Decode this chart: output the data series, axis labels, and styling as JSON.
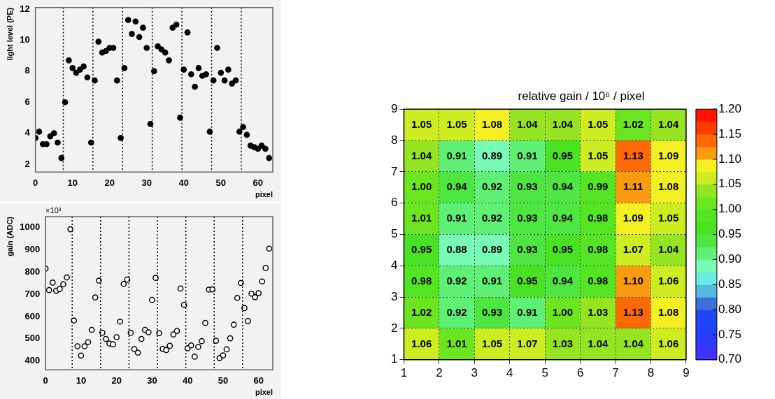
{
  "chart_data": [
    {
      "type": "scatter",
      "xlabel": "pixel",
      "ylabel": "light level (PE)",
      "x": [
        0,
        1,
        2,
        3,
        4,
        5,
        6,
        7,
        8,
        9,
        10,
        11,
        12,
        13,
        14,
        15,
        16,
        17,
        18,
        19,
        20,
        21,
        22,
        23,
        24,
        25,
        26,
        27,
        28,
        29,
        30,
        31,
        32,
        33,
        34,
        35,
        36,
        37,
        38,
        39,
        40,
        41,
        42,
        43,
        44,
        45,
        46,
        47,
        48,
        49,
        50,
        51,
        52,
        53,
        54,
        55,
        56,
        57,
        58,
        59,
        60,
        61,
        62,
        63
      ],
      "values": [
        3.7,
        4.1,
        3.3,
        3.3,
        3.8,
        4.0,
        3.4,
        2.4,
        6.0,
        8.7,
        8.2,
        7.9,
        8.1,
        8.3,
        7.6,
        3.4,
        7.4,
        9.9,
        9.2,
        9.3,
        9.5,
        9.5,
        7.4,
        3.7,
        8.2,
        11.3,
        10.4,
        11.2,
        10.2,
        10.8,
        9.5,
        4.6,
        8.0,
        9.6,
        9.4,
        9.2,
        8.7,
        10.8,
        11.0,
        5.0,
        8.1,
        10.5,
        7.8,
        7.0,
        8.2,
        7.7,
        7.8,
        4.1,
        7.4,
        9.5,
        7.9,
        7.4,
        8.1,
        7.2,
        7.4,
        4.1,
        4.4,
        3.9,
        3.2,
        3.1,
        3.0,
        3.2,
        3.0,
        2.4
      ],
      "color": "#000000",
      "marker": "circle",
      "xlim": [
        0,
        64
      ],
      "xticks": [
        0,
        10,
        20,
        30,
        40,
        50,
        60
      ],
      "ylim": [
        1.5,
        12.1
      ],
      "yticks": [
        2,
        4,
        6,
        8,
        10,
        12
      ],
      "ref_lines": [
        {
          "axis": "x",
          "value": 7.5,
          "color": "#000000",
          "line_style": "dotted"
        },
        {
          "axis": "x",
          "value": 15.5,
          "color": "#000000",
          "line_style": "dotted"
        },
        {
          "axis": "x",
          "value": 23.5,
          "color": "#000000",
          "line_style": "dotted"
        },
        {
          "axis": "x",
          "value": 31.5,
          "color": "#000000",
          "line_style": "dotted"
        },
        {
          "axis": "x",
          "value": 39.5,
          "color": "#000000",
          "line_style": "dotted"
        },
        {
          "axis": "x",
          "value": 47.5,
          "color": "#000000",
          "line_style": "dotted"
        },
        {
          "axis": "x",
          "value": 55.5,
          "color": "#000000",
          "line_style": "dotted"
        }
      ]
    },
    {
      "type": "scatter",
      "xlabel": "pixel",
      "ylabel": "gain (ADC)",
      "annotations": [
        "×10³"
      ],
      "x": [
        0,
        1,
        2,
        3,
        4,
        5,
        6,
        7,
        8,
        9,
        10,
        11,
        12,
        13,
        14,
        15,
        16,
        17,
        18,
        19,
        20,
        21,
        22,
        23,
        24,
        25,
        26,
        27,
        28,
        29,
        30,
        31,
        32,
        33,
        34,
        35,
        36,
        37,
        38,
        39,
        40,
        41,
        42,
        43,
        44,
        45,
        46,
        47,
        48,
        49,
        50,
        51,
        52,
        53,
        54,
        55,
        56,
        57,
        58,
        59,
        60,
        61,
        62,
        63
      ],
      "values": [
        816,
        719,
        753,
        716,
        724,
        745,
        776,
        993,
        582,
        466,
        424,
        466,
        485,
        540,
        686,
        762,
        527,
        499,
        478,
        475,
        507,
        577,
        747,
        766,
        527,
        453,
        437,
        499,
        540,
        529,
        675,
        774,
        525,
        454,
        449,
        468,
        519,
        535,
        726,
        652,
        457,
        470,
        419,
        463,
        489,
        571,
        721,
        722,
        491,
        413,
        425,
        452,
        502,
        563,
        684,
        751,
        638,
        580,
        703,
        687,
        705,
        758,
        819,
        906
      ],
      "color": "#000000",
      "marker": "circle",
      "xlim": [
        0,
        64
      ],
      "xticks": [
        0,
        10,
        20,
        30,
        40,
        50,
        60
      ],
      "ylim": [
        360,
        1050
      ],
      "yticks": [
        400,
        500,
        600,
        700,
        800,
        900,
        1000
      ],
      "ref_lines": [
        {
          "axis": "x",
          "value": 7.5,
          "color": "#000000",
          "line_style": "dotted"
        },
        {
          "axis": "x",
          "value": 15.5,
          "color": "#000000",
          "line_style": "dotted"
        },
        {
          "axis": "x",
          "value": 23.5,
          "color": "#000000",
          "line_style": "dotted"
        },
        {
          "axis": "x",
          "value": 31.5,
          "color": "#000000",
          "line_style": "dotted"
        },
        {
          "axis": "x",
          "value": 39.5,
          "color": "#000000",
          "line_style": "dotted"
        },
        {
          "axis": "x",
          "value": 47.5,
          "color": "#000000",
          "line_style": "dotted"
        },
        {
          "axis": "x",
          "value": 55.5,
          "color": "#000000",
          "line_style": "dotted"
        }
      ]
    },
    {
      "type": "heatmap",
      "title": "relative gain / 10⁶ / pixel",
      "xlim": [
        1,
        9
      ],
      "xticks": [
        1,
        2,
        3,
        4,
        5,
        6,
        7,
        8,
        9
      ],
      "ylim": [
        1,
        9
      ],
      "yticks": [
        1,
        2,
        3,
        4,
        5,
        6,
        7,
        8,
        9
      ],
      "grid": true,
      "cells": [
        [
          1.05,
          1.05,
          1.08,
          1.04,
          1.04,
          1.05,
          1.02,
          1.04
        ],
        [
          1.04,
          0.91,
          0.89,
          0.91,
          0.95,
          1.05,
          1.13,
          1.09
        ],
        [
          1.0,
          0.94,
          0.92,
          0.93,
          0.94,
          0.99,
          1.11,
          1.08
        ],
        [
          1.01,
          0.91,
          0.92,
          0.93,
          0.94,
          0.98,
          1.09,
          1.05
        ],
        [
          0.95,
          0.88,
          0.89,
          0.93,
          0.95,
          0.98,
          1.07,
          1.04
        ],
        [
          0.98,
          0.92,
          0.91,
          0.95,
          0.94,
          0.98,
          1.1,
          1.06
        ],
        [
          1.02,
          0.92,
          0.93,
          0.91,
          1.0,
          1.03,
          1.13,
          1.08
        ],
        [
          1.06,
          1.01,
          1.05,
          1.07,
          1.03,
          1.04,
          1.04,
          1.06
        ]
      ],
      "cell_labels": [
        [
          "1.05",
          "1.05",
          "1.08",
          "1.04",
          "1.04",
          "1.05",
          "1.02",
          "1.04"
        ],
        [
          "1.04",
          "0.91",
          "0.89",
          "0.91",
          "0.95",
          "1.05",
          "1.13",
          "1.09"
        ],
        [
          "1.00",
          "0.94",
          "0.92",
          "0.93",
          "0.94",
          "0.99",
          "1.11",
          "1.08"
        ],
        [
          "1.01",
          "0.91",
          "0.92",
          "0.93",
          "0.94",
          "0.98",
          "1.09",
          "1.05"
        ],
        [
          "0.95",
          "0.88",
          "0.89",
          "0.93",
          "0.95",
          "0.98",
          "1.07",
          "1.04"
        ],
        [
          "0.98",
          "0.92",
          "0.91",
          "0.95",
          "0.94",
          "0.98",
          "1.10",
          "1.06"
        ],
        [
          "1.02",
          "0.92",
          "0.93",
          "0.91",
          "1.00",
          "1.03",
          "1.13",
          "1.08"
        ],
        [
          "1.06",
          "1.01",
          "1.05",
          "1.07",
          "1.03",
          "1.04",
          "1.04",
          "1.06"
        ]
      ],
      "clim": [
        0.7,
        1.2
      ],
      "cticks": [
        {
          "value": 0.7,
          "label": "0.70"
        },
        {
          "value": 0.75,
          "label": "0.75"
        },
        {
          "value": 0.8,
          "label": "0.80"
        },
        {
          "value": 0.85,
          "label": "0.85"
        },
        {
          "value": 0.9,
          "label": "0.90"
        },
        {
          "value": 0.95,
          "label": "0.95"
        },
        {
          "value": 1.0,
          "label": "1.00"
        },
        {
          "value": 1.05,
          "label": "1.05"
        },
        {
          "value": 1.1,
          "label": "1.10"
        },
        {
          "value": 1.15,
          "label": "1.15"
        },
        {
          "value": 1.2,
          "label": "1.20"
        }
      ]
    }
  ]
}
